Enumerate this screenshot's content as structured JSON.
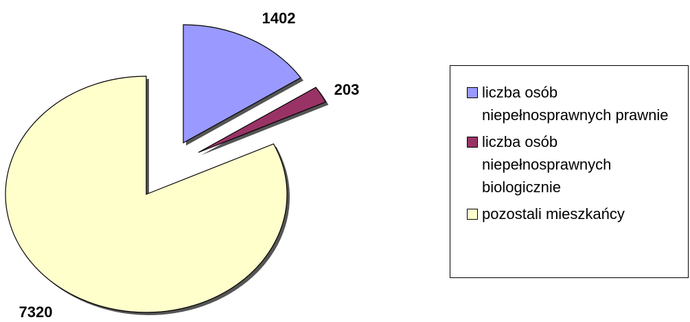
{
  "chart_data": {
    "type": "pie",
    "categories": [
      "liczba osób niepełnosprawnych prawnie",
      "liczba osób niepełnosprawnych biologicznie",
      "pozostali mieszkańcy"
    ],
    "values": [
      1402,
      203,
      7320
    ],
    "colors": [
      "#9999ff",
      "#993366",
      "#ffffcc"
    ],
    "legend": "right"
  }
}
